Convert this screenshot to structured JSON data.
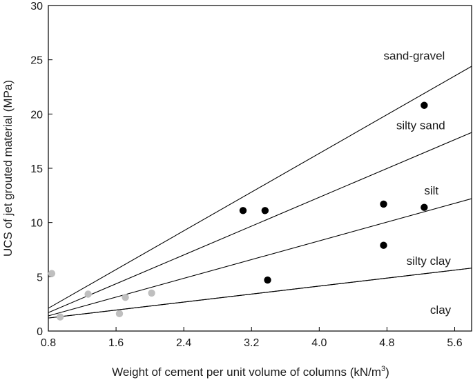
{
  "chart_data": {
    "type": "scatter",
    "xlabel_main": "Weight of cement per unit volume of columns (kN/m",
    "xlabel_sup": "3",
    "xlabel_close": ")",
    "ylabel": "UCS of jet grouted material (MPa)",
    "xlim": [
      0.8,
      5.8
    ],
    "ylim": [
      0,
      30
    ],
    "x_ticks": [
      0.8,
      1.6,
      2.4,
      3.2,
      4.0,
      4.8,
      5.6
    ],
    "x_tick_labels": [
      "0.8",
      "1.6",
      "2.4",
      "3.2",
      "4.0",
      "4.8",
      "5.6"
    ],
    "y_ticks": [
      0,
      5,
      10,
      15,
      20,
      25,
      30
    ],
    "y_tick_labels": [
      "0",
      "5",
      "10",
      "15",
      "20",
      "25",
      "30"
    ],
    "lines": [
      {
        "label": "sand-gravel",
        "start": [
          0.8,
          2.1
        ],
        "end": [
          5.8,
          24.4
        ]
      },
      {
        "label": "silty sand",
        "start": [
          0.8,
          1.7
        ],
        "end": [
          5.8,
          18.3
        ]
      },
      {
        "label": "silt",
        "start": [
          0.8,
          1.4
        ],
        "end": [
          5.8,
          12.2
        ]
      },
      {
        "label": "silty clay",
        "start": [
          0.8,
          1.2
        ],
        "end": [
          5.8,
          5.8
        ]
      },
      {
        "label": "clay",
        "start": [
          0.8,
          1.2
        ],
        "end": [
          5.8,
          5.8
        ]
      }
    ],
    "line_label_positions": [
      {
        "label": "sand-gravel",
        "x": 4.76,
        "y": 25.0
      },
      {
        "label": "silty sand",
        "x": 4.91,
        "y": 18.6
      },
      {
        "label": "silt",
        "x": 5.24,
        "y": 12.6
      },
      {
        "label": "silty clay",
        "x": 5.03,
        "y": 6.1
      },
      {
        "label": "clay",
        "x": 5.31,
        "y": 1.6
      }
    ],
    "series": [
      {
        "color": "#000000",
        "points": [
          [
            3.1,
            11.1
          ],
          [
            3.36,
            11.1
          ],
          [
            3.39,
            4.7
          ],
          [
            4.76,
            11.7
          ],
          [
            4.76,
            7.9
          ],
          [
            5.24,
            11.4
          ],
          [
            5.24,
            20.8
          ]
        ]
      },
      {
        "color": "#bfbfbf",
        "points": [
          [
            0.84,
            5.3
          ],
          [
            0.94,
            1.3
          ],
          [
            1.27,
            3.4
          ],
          [
            1.64,
            1.6
          ],
          [
            1.71,
            3.1
          ],
          [
            2.02,
            3.5
          ]
        ]
      }
    ]
  }
}
